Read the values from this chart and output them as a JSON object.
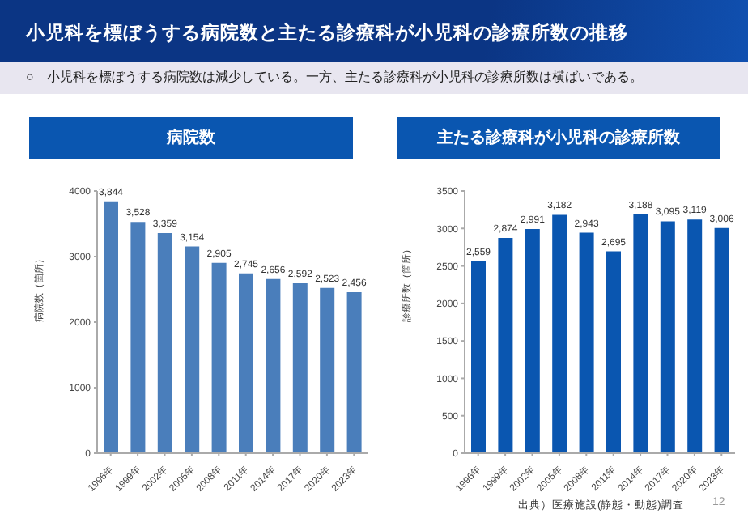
{
  "chart_data": [
    {
      "type": "bar",
      "title": "病院数",
      "ylabel": "病院数（箇所）",
      "annotations": [
        "小児科を標ぼうする病院数と主たる診療科が小児科の診療所数の推移",
        "○　小児科を標ぼうする病院数は減少している。一方、主たる診療科が小児科の診療所数は横ばいである。"
      ],
      "categories": [
        "1996年",
        "1999年",
        "2002年",
        "2005年",
        "2008年",
        "2011年",
        "2014年",
        "2017年",
        "2020年",
        "2023年"
      ],
      "values": [
        3844,
        3528,
        3359,
        3154,
        2905,
        2745,
        2656,
        2592,
        2523,
        2456
      ],
      "value_labels": [
        "3,844",
        "3,528",
        "3,359",
        "3,154",
        "2,905",
        "2,745",
        "2,656",
        "2,592",
        "2,523",
        "2,456"
      ],
      "color": "#4a7ebb",
      "ylim": [
        0,
        4000
      ],
      "yticks": [
        0,
        1000,
        2000,
        3000,
        4000
      ],
      "grid": false,
      "legend": false
    },
    {
      "type": "bar",
      "title": "主たる診療科が小児科の診療所数",
      "ylabel": "診療所数（箇所）",
      "annotations": [
        "出典）医療施設(静態・動態)調査",
        "12"
      ],
      "categories": [
        "1996年",
        "1999年",
        "2002年",
        "2005年",
        "2008年",
        "2011年",
        "2014年",
        "2017年",
        "2020年",
        "2023年"
      ],
      "values": [
        2559,
        2874,
        2991,
        3182,
        2943,
        2695,
        3188,
        3095,
        3119,
        3006
      ],
      "value_labels": [
        "2,559",
        "2,874",
        "2,991",
        "3,182",
        "2,943",
        "2,695",
        "3,188",
        "3,095",
        "3,119",
        "3,006"
      ],
      "color": "#0a56b0",
      "ylim": [
        0,
        3500
      ],
      "yticks": [
        0,
        500,
        1000,
        1500,
        2000,
        2500,
        3000,
        3500
      ],
      "grid": false,
      "legend": false
    }
  ]
}
